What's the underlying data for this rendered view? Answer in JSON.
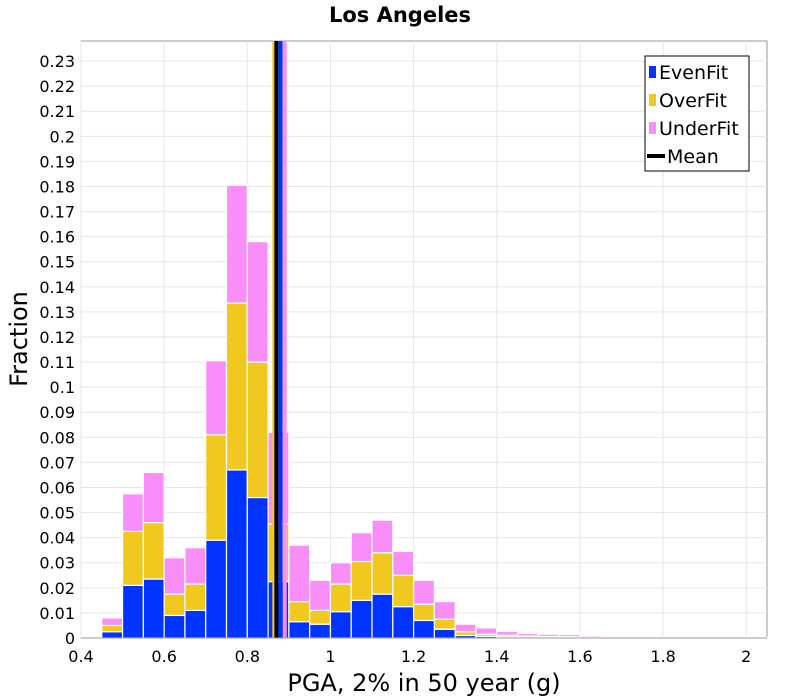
{
  "chart_data": {
    "type": "bar",
    "stacked": true,
    "title": "Los Angeles",
    "xlabel": "PGA, 2% in 50 year (g)",
    "ylabel": "Fraction",
    "xlim": [
      0.4,
      2.05
    ],
    "ylim": [
      0,
      0.238
    ],
    "x_ticks": [
      "0.4",
      "0.6",
      "0.8",
      "1",
      "1.2",
      "1.4",
      "1.6",
      "1.8",
      "2"
    ],
    "y_ticks": [
      "0",
      "0.01",
      "0.02",
      "0.03",
      "0.04",
      "0.05",
      "0.06",
      "0.07",
      "0.08",
      "0.09",
      "0.1",
      "0.11",
      "0.12",
      "0.13",
      "0.14",
      "0.15",
      "0.16",
      "0.17",
      "0.18",
      "0.19",
      "0.2",
      "0.21",
      "0.22",
      "0.23"
    ],
    "grid": true,
    "legend_position": "top-right",
    "bin_width": 0.05,
    "bin_starts": [
      0.45,
      0.5,
      0.55,
      0.6,
      0.65,
      0.7,
      0.75,
      0.8,
      0.85,
      0.9,
      0.95,
      1.0,
      1.05,
      1.1,
      1.15,
      1.2,
      1.25,
      1.3,
      1.35,
      1.4,
      1.45,
      1.5,
      1.55,
      1.6,
      1.65,
      1.7,
      1.75,
      1.8,
      1.85,
      1.9,
      1.95,
      2.0
    ],
    "series": [
      {
        "name": "EvenFit",
        "color": "#0033ff",
        "values": [
          0.0025,
          0.021,
          0.0235,
          0.009,
          0.011,
          0.039,
          0.067,
          0.056,
          0.0225,
          0.0065,
          0.0055,
          0.0105,
          0.015,
          0.0175,
          0.0125,
          0.007,
          0.0035,
          0.001,
          0.0007,
          0.0005,
          0.0004,
          0.0003,
          0.0003,
          0.0002,
          0.0001,
          0.0001,
          0.0001,
          0.0001,
          0.0001,
          0.0,
          0.0,
          0.0
        ]
      },
      {
        "name": "OverFit",
        "color": "#f0c820",
        "values": [
          0.0025,
          0.0215,
          0.0225,
          0.0085,
          0.0105,
          0.042,
          0.0665,
          0.054,
          0.023,
          0.008,
          0.0055,
          0.011,
          0.0155,
          0.0165,
          0.0125,
          0.0065,
          0.004,
          0.0015,
          0.0008,
          0.0006,
          0.0004,
          0.0003,
          0.0003,
          0.0002,
          0.0001,
          0.0001,
          0.0001,
          0.0001,
          0.0001,
          0.0,
          0.0,
          0.0
        ]
      },
      {
        "name": "UnderFit",
        "color": "#fa8ef8",
        "values": [
          0.003,
          0.015,
          0.02,
          0.0145,
          0.0145,
          0.0295,
          0.047,
          0.048,
          0.0365,
          0.0225,
          0.012,
          0.0085,
          0.0115,
          0.013,
          0.0095,
          0.0095,
          0.007,
          0.003,
          0.0025,
          0.0015,
          0.001,
          0.0009,
          0.0008,
          0.0006,
          0.0004,
          0.0003,
          0.0003,
          0.0003,
          0.0002,
          0.0001,
          0.0001,
          0.0001
        ]
      }
    ],
    "mean_line": {
      "name": "Mean",
      "x": 0.87,
      "color": "#000000"
    },
    "extra_lines": [
      {
        "x": 0.865,
        "color": "#f0c820"
      },
      {
        "x": 0.88,
        "color": "#0033ff"
      },
      {
        "x": 0.89,
        "color": "#fa8ef8"
      }
    ]
  }
}
